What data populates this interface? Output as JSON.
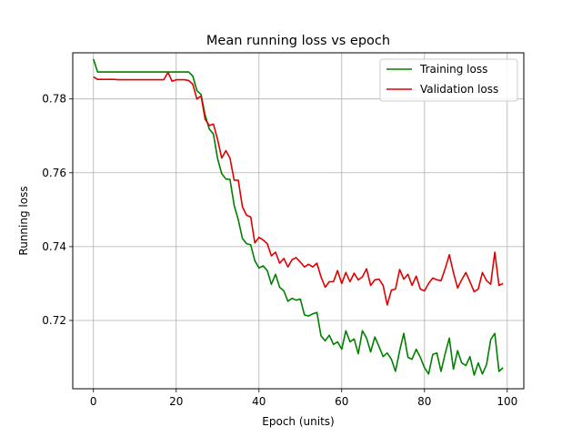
{
  "chart_data": {
    "type": "line",
    "title": "Mean running loss vs epoch",
    "xlabel": "Epoch (units)",
    "ylabel": "Running loss",
    "xlim": [
      -5,
      104
    ],
    "ylim": [
      0.7015,
      0.7925
    ],
    "xticks": [
      0,
      20,
      40,
      60,
      80,
      100
    ],
    "yticks": [
      0.72,
      0.74,
      0.76,
      0.78
    ],
    "grid": true,
    "legend_position": "top-right",
    "series": [
      {
        "name": "Training loss",
        "color": "#008000",
        "values": [
          0.7908,
          0.7873,
          0.7873,
          0.7873,
          0.7873,
          0.7873,
          0.7873,
          0.7873,
          0.7873,
          0.7873,
          0.7873,
          0.7873,
          0.7873,
          0.7873,
          0.7873,
          0.7873,
          0.7873,
          0.7873,
          0.7873,
          0.7873,
          0.7873,
          0.7873,
          0.7873,
          0.7873,
          0.7862,
          0.7823,
          0.7812,
          0.7756,
          0.7718,
          0.7705,
          0.7638,
          0.7598,
          0.7583,
          0.7582,
          0.7512,
          0.7473,
          0.7422,
          0.7408,
          0.7405,
          0.7362,
          0.7342,
          0.7348,
          0.7335,
          0.7298,
          0.7325,
          0.729,
          0.728,
          0.7252,
          0.726,
          0.7255,
          0.7258,
          0.7215,
          0.7212,
          0.7218,
          0.7222,
          0.7158,
          0.7145,
          0.716,
          0.7135,
          0.7142,
          0.7122,
          0.7172,
          0.7142,
          0.715,
          0.711,
          0.7172,
          0.7152,
          0.7115,
          0.7155,
          0.713,
          0.7102,
          0.7112,
          0.7095,
          0.7062,
          0.7118,
          0.7165,
          0.71,
          0.7095,
          0.7122,
          0.71,
          0.7072,
          0.7055,
          0.7108,
          0.7112,
          0.7062,
          0.711,
          0.7152,
          0.7068,
          0.7118,
          0.7085,
          0.7078,
          0.7102,
          0.7052,
          0.7085,
          0.7055,
          0.708,
          0.7148,
          0.7165,
          0.7062,
          0.7072
        ]
      },
      {
        "name": "Validation loss",
        "color": "#e00000",
        "values": [
          0.786,
          0.7853,
          0.7853,
          0.7853,
          0.7853,
          0.7853,
          0.7852,
          0.7852,
          0.7852,
          0.7852,
          0.7852,
          0.7852,
          0.7852,
          0.7852,
          0.7852,
          0.7852,
          0.7852,
          0.7852,
          0.7872,
          0.7848,
          0.7852,
          0.7852,
          0.7852,
          0.785,
          0.784,
          0.78,
          0.7808,
          0.7745,
          0.7728,
          0.7732,
          0.769,
          0.764,
          0.766,
          0.764,
          0.758,
          0.758,
          0.7508,
          0.7485,
          0.748,
          0.741,
          0.7425,
          0.7418,
          0.7408,
          0.7375,
          0.7385,
          0.7355,
          0.7368,
          0.7345,
          0.7365,
          0.737,
          0.7358,
          0.7345,
          0.7352,
          0.7345,
          0.7355,
          0.7318,
          0.729,
          0.7305,
          0.7305,
          0.7335,
          0.73,
          0.733,
          0.7305,
          0.7328,
          0.731,
          0.7318,
          0.734,
          0.7295,
          0.731,
          0.7312,
          0.7295,
          0.7242,
          0.7282,
          0.7285,
          0.7338,
          0.7312,
          0.7325,
          0.7295,
          0.732,
          0.7285,
          0.728,
          0.73,
          0.7315,
          0.731,
          0.7308,
          0.734,
          0.7378,
          0.733,
          0.7288,
          0.731,
          0.733,
          0.7305,
          0.7278,
          0.7285,
          0.733,
          0.7308,
          0.7298,
          0.7385,
          0.7295,
          0.73
        ]
      }
    ]
  }
}
